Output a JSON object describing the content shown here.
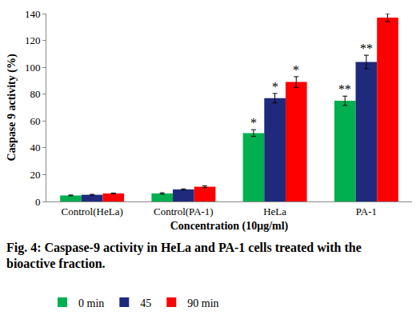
{
  "chart_data": {
    "type": "bar",
    "caption": "Fig. 4: Caspase-9 activity in HeLa and PA-1 cells treated with the bioactive fraction.",
    "x_label": "Concentration (10μg/ml)",
    "y_label": "Caspase 9 activity (%)",
    "categories": [
      "Control(HeLa)",
      "Control(PA-1)",
      "HeLa",
      "PA-1"
    ],
    "series": [
      {
        "name": "0 min",
        "color": "#00b050",
        "values": [
          4.5,
          6,
          51,
          75
        ],
        "errors": [
          0.3,
          0.5,
          2.5,
          3.5
        ]
      },
      {
        "name": "45",
        "color": "#1f2a7c",
        "values": [
          5,
          9,
          77,
          104
        ],
        "errors": [
          0.3,
          0.4,
          3.5,
          5
        ]
      },
      {
        "name": "90 min",
        "color": "#ff0000",
        "values": [
          6,
          11,
          89,
          137
        ],
        "errors": [
          0.3,
          0.7,
          4,
          3
        ]
      }
    ],
    "annotations": [
      {
        "category": "HeLa",
        "series": "0 min",
        "text": "*"
      },
      {
        "category": "HeLa",
        "series": "45",
        "text": "*"
      },
      {
        "category": "HeLa",
        "series": "90 min",
        "text": "*"
      },
      {
        "category": "PA-1",
        "series": "0 min",
        "text": "**"
      },
      {
        "category": "PA-1",
        "series": "45",
        "text": "**"
      }
    ],
    "ylim": [
      0,
      140
    ],
    "yticks": [
      0,
      20,
      40,
      60,
      80,
      100,
      120,
      140
    ],
    "grid": false,
    "legend": "bottom"
  }
}
